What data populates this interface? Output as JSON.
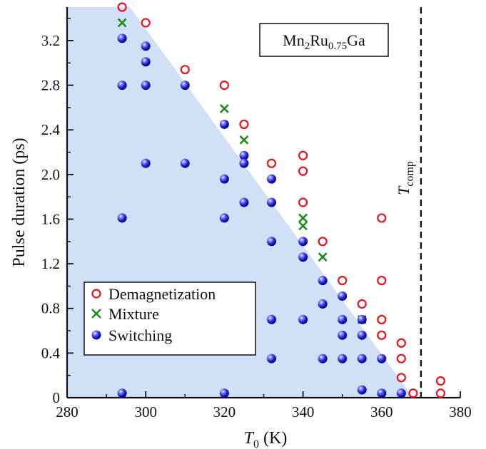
{
  "chart_data": {
    "type": "scatter",
    "xlabel": "T0 (K)",
    "xlabel_main": "T",
    "xlabel_sub": "0",
    "xlabel_unit": " (K)",
    "ylabel": "Pulse duration (ps)",
    "xlim": [
      280,
      380
    ],
    "ylim": [
      0,
      3.5
    ],
    "xticks": [
      280,
      300,
      320,
      340,
      360,
      380
    ],
    "yticks": [
      0,
      0.4,
      0.8,
      1.2,
      1.6,
      2.0,
      2.4,
      2.8,
      3.2
    ],
    "ytick_labels": [
      "0",
      "0.4",
      "0.8",
      "1.2",
      "1.6",
      "2.0",
      "2.4",
      "2.8",
      "3.2"
    ],
    "grid": false,
    "legend_position": "lower-left",
    "annotation": {
      "material_main": "Mn",
      "material_sub1": "2",
      "material_mid": "Ru",
      "material_sub2": "0.75",
      "material_end": "Ga",
      "tcomp_main": "T",
      "tcomp_sub": "comp",
      "tcomp_x": 370
    },
    "shaded_region": {
      "description_points": [
        [
          280,
          3.5
        ],
        [
          296,
          3.5
        ],
        [
          368,
          0
        ],
        [
          280,
          0
        ]
      ],
      "color": "#cfe0f7"
    },
    "series": [
      {
        "name": "Demagnetization",
        "marker": "open-circle",
        "color": "#e8141c",
        "points": [
          [
            294,
            3.5
          ],
          [
            300,
            3.36
          ],
          [
            310,
            2.94
          ],
          [
            320,
            2.8
          ],
          [
            325,
            2.45
          ],
          [
            332,
            2.1
          ],
          [
            340,
            2.17
          ],
          [
            340,
            2.03
          ],
          [
            340,
            1.75
          ],
          [
            345,
            1.4
          ],
          [
            350,
            1.05
          ],
          [
            355,
            0.84
          ],
          [
            360,
            1.61
          ],
          [
            360,
            1.05
          ],
          [
            360,
            0.7
          ],
          [
            360,
            0.56
          ],
          [
            365,
            0.49
          ],
          [
            365,
            0.35
          ],
          [
            365,
            0.18
          ],
          [
            368,
            0.04
          ],
          [
            375,
            0.15
          ],
          [
            375,
            0.04
          ]
        ]
      },
      {
        "name": "Mixture",
        "marker": "x",
        "color": "#1e8c1e",
        "points": [
          [
            294,
            3.36
          ],
          [
            320,
            2.59
          ],
          [
            325,
            2.31
          ],
          [
            340,
            1.61
          ],
          [
            340,
            1.54
          ],
          [
            345,
            1.26
          ],
          [
            355,
            0.7
          ]
        ]
      },
      {
        "name": "Switching",
        "marker": "filled-sphere",
        "color": "#1a1ad6",
        "points": [
          [
            294,
            3.22
          ],
          [
            294,
            2.8
          ],
          [
            294,
            1.61
          ],
          [
            294,
            0.04
          ],
          [
            300,
            3.15
          ],
          [
            300,
            3.01
          ],
          [
            300,
            2.8
          ],
          [
            300,
            2.1
          ],
          [
            310,
            2.8
          ],
          [
            310,
            2.1
          ],
          [
            320,
            2.45
          ],
          [
            320,
            1.96
          ],
          [
            320,
            1.61
          ],
          [
            320,
            0.04
          ],
          [
            325,
            2.17
          ],
          [
            325,
            2.1
          ],
          [
            325,
            1.75
          ],
          [
            332,
            1.96
          ],
          [
            332,
            1.75
          ],
          [
            332,
            1.4
          ],
          [
            332,
            0.7
          ],
          [
            332,
            0.35
          ],
          [
            340,
            1.4
          ],
          [
            340,
            1.26
          ],
          [
            340,
            0.7
          ],
          [
            345,
            1.05
          ],
          [
            345,
            0.84
          ],
          [
            345,
            0.35
          ],
          [
            350,
            0.91
          ],
          [
            350,
            0.7
          ],
          [
            350,
            0.56
          ],
          [
            350,
            0.35
          ],
          [
            355,
            0.7
          ],
          [
            355,
            0.56
          ],
          [
            355,
            0.35
          ],
          [
            355,
            0.07
          ],
          [
            360,
            0.35
          ],
          [
            360,
            0.04
          ],
          [
            365,
            0.04
          ]
        ]
      }
    ]
  }
}
